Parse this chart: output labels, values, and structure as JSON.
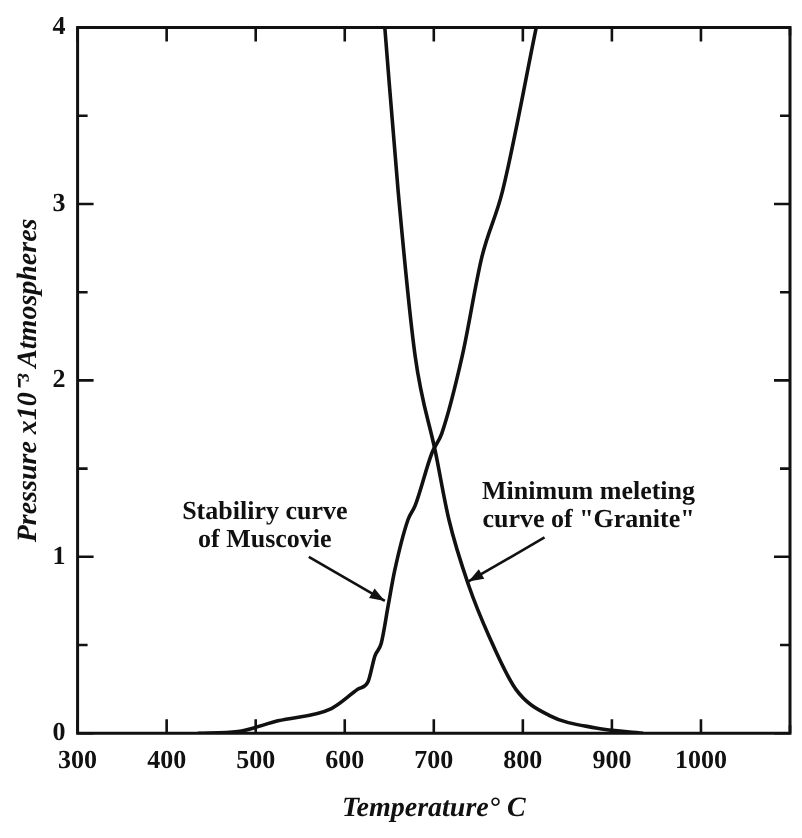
{
  "chart_data": {
    "type": "line",
    "xlabel": "Temperature° C",
    "ylabel": "Pressure x10⁻³ Atmospheres",
    "xlim": [
      300,
      1100
    ],
    "xticks": [
      300,
      400,
      500,
      600,
      700,
      800,
      900,
      1000,
      {
        "value": 1100,
        "label": null
      }
    ],
    "ylim": [
      0,
      4
    ],
    "yticks": [
      0,
      {
        "value": 0.5,
        "label": null
      },
      1,
      {
        "value": 1.5,
        "label": null
      },
      2,
      {
        "value": 2.5,
        "label": null
      },
      3,
      {
        "value": 3.5,
        "label": null
      },
      4
    ],
    "grid": false,
    "legend": false,
    "marker": "none",
    "line_style": "solid",
    "series": [
      {
        "color": "#111111",
        "x": [
          435,
          480,
          525,
          585,
          615,
          626,
          634,
          641,
          649,
          656,
          671,
          679,
          698,
          709,
          732,
          754,
          777,
          815
        ],
        "values": [
          0,
          0.01,
          0.07,
          0.14,
          0.25,
          0.29,
          0.44,
          0.51,
          0.73,
          0.92,
          1.21,
          1.29,
          1.59,
          1.7,
          2.14,
          2.7,
          3.07,
          4
        ]
      },
      {
        "color": "#111111",
        "x": [
          645,
          660,
          679,
          702,
          717,
          739,
          762,
          792,
          830,
          882,
          935
        ],
        "values": [
          4,
          3.07,
          2.14,
          1.59,
          1.21,
          0.84,
          0.55,
          0.25,
          0.1,
          0.03,
          0
        ]
      }
    ],
    "annotations": [
      {
        "text": "Stabiliry curve\nof Muscovie",
        "x": 645,
        "y": 0.75
      },
      {
        "text": "Minimum meleting\ncurve of \"Granite\"",
        "x": 739,
        "y": 0.86
      }
    ]
  }
}
